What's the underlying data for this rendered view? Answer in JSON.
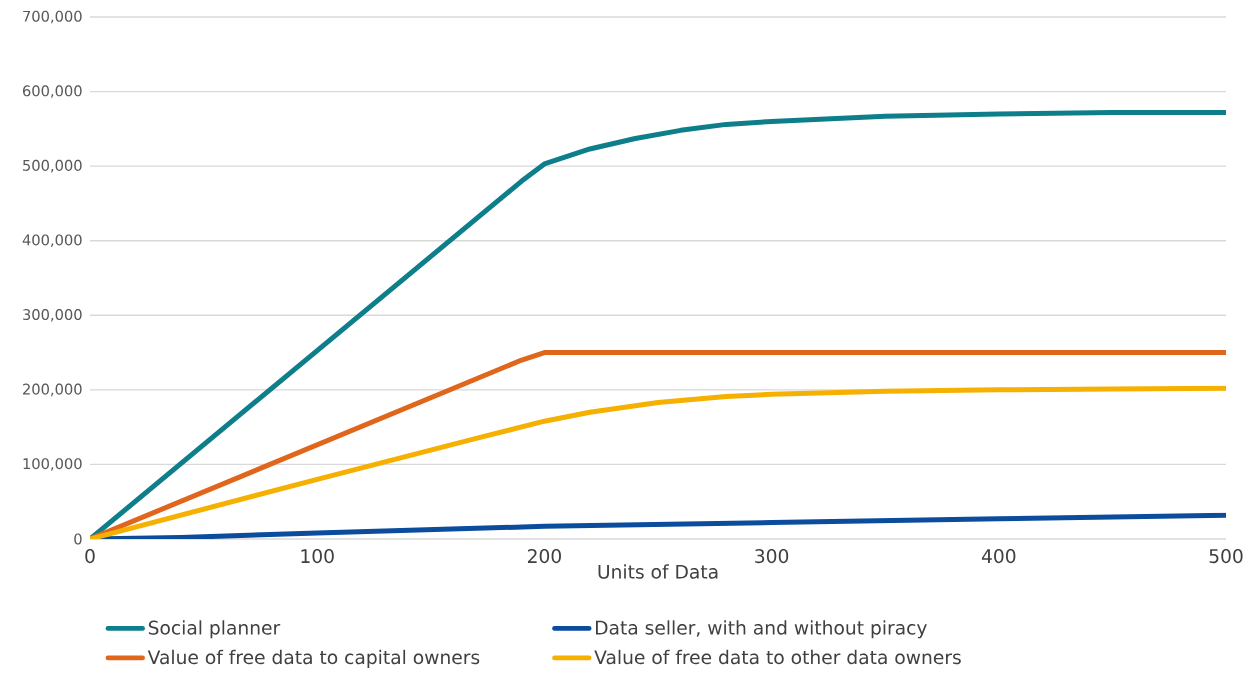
{
  "chart_data": {
    "type": "line",
    "xlabel": "Units of Data",
    "xlim": [
      0,
      500
    ],
    "xticks": [
      0,
      100,
      200,
      300,
      400,
      500
    ],
    "ylim": [
      0,
      700000
    ],
    "yticks": [
      {
        "value": 0,
        "label": "0"
      },
      {
        "value": 100000,
        "label": "100,000"
      },
      {
        "value": 200000,
        "label": "200,000"
      },
      {
        "value": 300000,
        "label": "300,000"
      },
      {
        "value": 400000,
        "label": "400,000"
      },
      {
        "value": 500000,
        "label": "500,000"
      },
      {
        "value": 600000,
        "label": "600,000"
      },
      {
        "value": 700000,
        "label": "700,000"
      }
    ],
    "grid": "y",
    "legend": "bottom",
    "marker": "none",
    "line_style": "solid",
    "series": [
      {
        "name": "Social planner",
        "color": "#0e7f8a",
        "x": [
          0,
          190,
          200,
          220,
          240,
          260,
          280,
          300,
          350,
          400,
          450,
          500
        ],
        "values": [
          0,
          480000,
          503000,
          523000,
          537000,
          548000,
          556000,
          560000,
          567000,
          570000,
          572000,
          572000
        ]
      },
      {
        "name": "Data seller, with and without piracy",
        "color": "#0b4c9c",
        "x": [
          0,
          40,
          100,
          200,
          300,
          400,
          500
        ],
        "values": [
          0,
          2000,
          8000,
          17000,
          22000,
          27000,
          32000
        ]
      },
      {
        "name": "Value of free data to capital owners",
        "color": "#e0661c",
        "x": [
          0,
          190,
          200,
          500
        ],
        "values": [
          0,
          240000,
          250000,
          250000
        ]
      },
      {
        "name": "Value of free data to other data owners",
        "color": "#f5b000",
        "x": [
          0,
          100,
          170,
          200,
          220,
          250,
          280,
          300,
          350,
          400,
          450,
          500
        ],
        "values": [
          0,
          80000,
          135000,
          158000,
          170000,
          183000,
          191000,
          194000,
          198000,
          200000,
          201000,
          202000
        ]
      }
    ]
  }
}
